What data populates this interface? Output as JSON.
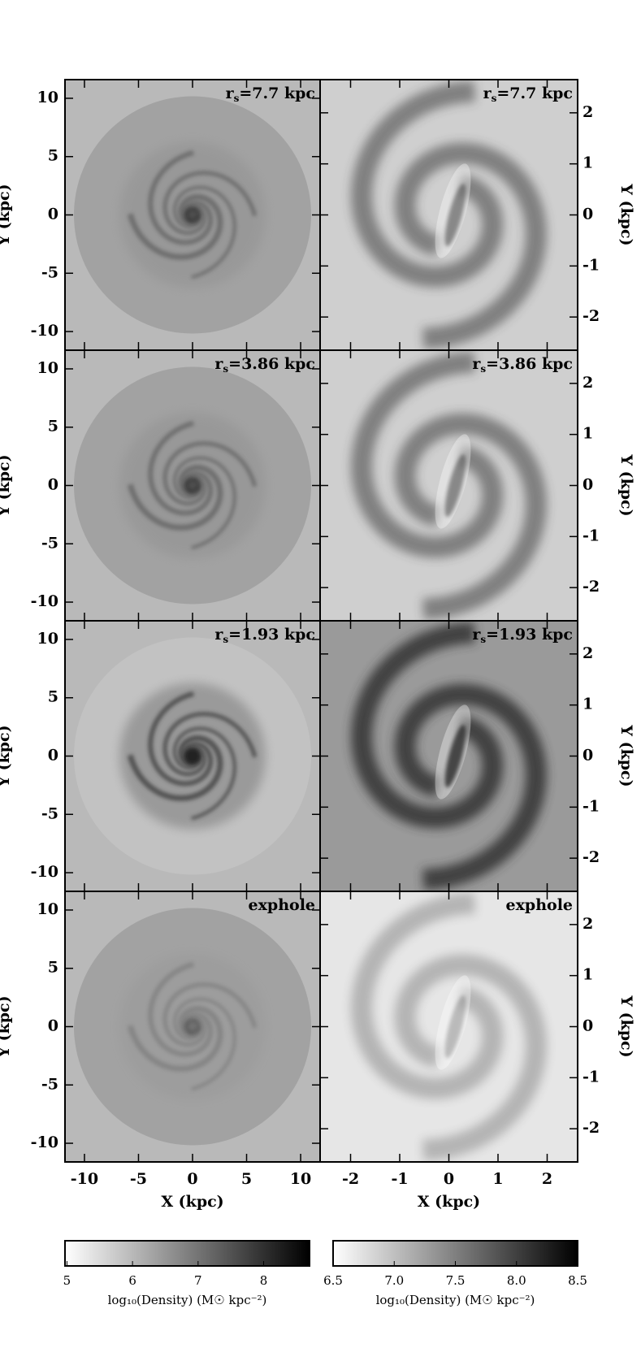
{
  "chart_data": {
    "type": "image",
    "columns": [
      {
        "xlim": [
          -11.8,
          11.8
        ],
        "ylim": [
          -11.6,
          11.6
        ],
        "xticks": [
          -10,
          -5,
          0,
          5,
          10
        ],
        "yticks": [
          -10,
          -5,
          0,
          5,
          10
        ],
        "xlabel": "X (kpc)",
        "ylabel": "Y (kpc)"
      },
      {
        "xlim": [
          -2.62,
          2.62
        ],
        "ylim": [
          -2.65,
          2.65
        ],
        "xticks": [
          -2,
          -1,
          0,
          1,
          2
        ],
        "yticks": [
          -2,
          -1,
          0,
          1,
          2
        ],
        "xlabel": "X (kpc)",
        "ylabel": "Y (kpc)"
      }
    ],
    "panel_labels": [
      {
        "symbol": "r",
        "sub": "s",
        "text": "=7.7 kpc"
      },
      {
        "symbol": "r",
        "sub": "s",
        "text": "=3.86 kpc"
      },
      {
        "symbol": "r",
        "sub": "s",
        "text": "=1.93 kpc"
      },
      {
        "text": "exphole"
      }
    ],
    "colorbars": [
      {
        "lim": [
          4.97,
          8.7
        ],
        "ticks": [
          5,
          6,
          7,
          8
        ],
        "label": "log₁₀(Density) (M☉ kpc⁻²)"
      },
      {
        "lim": [
          6.5,
          8.5
        ],
        "ticks": [
          {
            "value": 6.5,
            "label": "6.5"
          },
          {
            "value": 7,
            "label": "7.0"
          },
          {
            "value": 7.5,
            "label": "7.5"
          },
          {
            "value": 8,
            "label": "8.0"
          },
          {
            "value": 8.5,
            "label": "8.5"
          }
        ],
        "label": "log₁₀(Density) (M☉ kpc⁻²)"
      }
    ]
  }
}
